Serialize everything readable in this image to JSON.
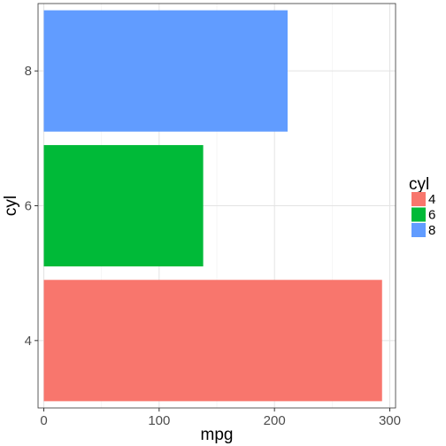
{
  "chart_data": {
    "type": "bar",
    "orientation": "horizontal",
    "title": "",
    "xlabel": "mpg",
    "ylabel": "cyl",
    "categories": [
      "4",
      "6",
      "8"
    ],
    "values": [
      293.3,
      138.2,
      211.4
    ],
    "bar_colors": [
      "#F8766D",
      "#00BA38",
      "#619CFF"
    ],
    "xlim": [
      -5,
      305
    ],
    "x_ticks": [
      0,
      100,
      200,
      300
    ],
    "x_tick_labels": [
      "0",
      "100",
      "200",
      "300"
    ],
    "y_tick_labels": [
      "4",
      "6",
      "8"
    ],
    "grid": true,
    "legend": {
      "title": "cyl",
      "position": "right",
      "entries": [
        {
          "label": "4",
          "color": "#F8766D"
        },
        {
          "label": "6",
          "color": "#00BA38"
        },
        {
          "label": "8",
          "color": "#619CFF"
        }
      ]
    }
  }
}
